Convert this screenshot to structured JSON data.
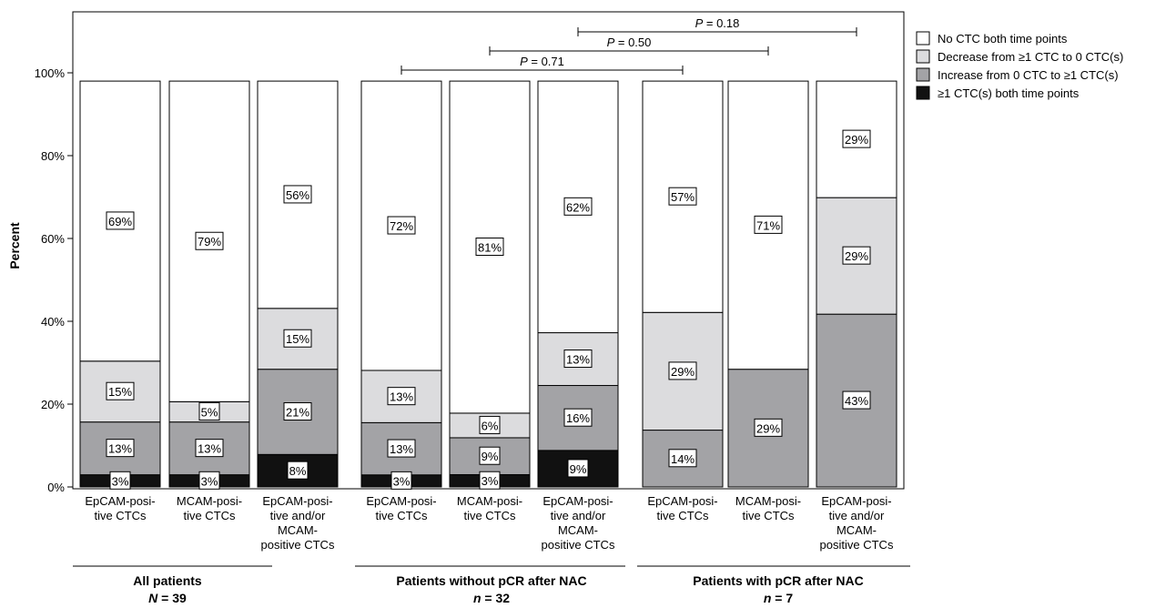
{
  "chart_data": {
    "type": "bar",
    "stacked": true,
    "ylabel": "Percent",
    "ylim": [
      0,
      100
    ],
    "yticks": [
      "0%",
      "20%",
      "40%",
      "60%",
      "80%",
      "100%"
    ],
    "categories": [
      [
        "EpCAM-posi-",
        "tive CTCs"
      ],
      [
        "MCAM-posi-",
        "tive CTCs"
      ],
      [
        "EpCAM-posi-",
        "tive and/or",
        "MCAM-",
        "positive CTCs"
      ],
      [
        "EpCAM-posi-",
        "tive CTCs"
      ],
      [
        "MCAM-posi-",
        "tive CTCs"
      ],
      [
        "EpCAM-posi-",
        "tive and/or",
        "MCAM-",
        "positive CTCs"
      ],
      [
        "EpCAM-posi-",
        "tive CTCs"
      ],
      [
        "MCAM-posi-",
        "tive CTCs"
      ],
      [
        "EpCAM-posi-",
        "tive and/or",
        "MCAM-",
        "positive CTCs"
      ]
    ],
    "groups": [
      {
        "name": "All patients",
        "n_prefix": "N",
        "n_suffix": " = 39",
        "bars": [
          0,
          1,
          2
        ]
      },
      {
        "name": "Patients without pCR after NAC",
        "n_prefix": "n",
        "n_suffix": " = 32",
        "bars": [
          3,
          4,
          5
        ]
      },
      {
        "name": "Patients with pCR after NAC",
        "n_prefix": "n",
        "n_suffix": " = 7",
        "bars": [
          6,
          7,
          8
        ]
      }
    ],
    "series": [
      {
        "name": "≥1 CTC(s) both time points",
        "color": "#111111",
        "values": [
          3,
          3,
          8,
          3,
          3,
          9,
          0,
          0,
          0
        ],
        "labels": [
          "3%",
          "3%",
          "8%",
          "3%",
          "3%",
          "9%",
          "",
          "",
          ""
        ]
      },
      {
        "name": "Increase from 0 CTC to ≥1 CTC(s)",
        "color": "#a3a3a6",
        "values": [
          13,
          13,
          21,
          13,
          9,
          16,
          14,
          29,
          43
        ],
        "labels": [
          "13%",
          "13%",
          "21%",
          "13%",
          "9%",
          "16%",
          "14%",
          "29%",
          "43%"
        ]
      },
      {
        "name": "Decrease from ≥1 CTC to 0 CTC(s)",
        "color": "#dcdcde",
        "values": [
          15,
          5,
          15,
          13,
          6,
          13,
          29,
          0,
          29
        ],
        "labels": [
          "15%",
          "5%",
          "15%",
          "13%",
          "6%",
          "13%",
          "29%",
          "",
          "29%"
        ]
      },
      {
        "name": "No CTC both time points",
        "color": "#ffffff",
        "values": [
          69,
          79,
          56,
          72,
          81,
          62,
          57,
          71,
          29
        ],
        "labels": [
          "69%",
          "79%",
          "56%",
          "72%",
          "81%",
          "62%",
          "57%",
          "71%",
          "29%"
        ]
      }
    ],
    "legend_order": [
      3,
      2,
      1,
      0
    ],
    "legend_position": "right",
    "comparisons": [
      {
        "from": 3,
        "to": 6,
        "p_label": "P",
        "p_value": " = 0.71"
      },
      {
        "from": 4,
        "to": 7,
        "p_label": "P",
        "p_value": " = 0.50"
      },
      {
        "from": 5,
        "to": 8,
        "p_label": "P",
        "p_value": " = 0.18"
      }
    ]
  }
}
